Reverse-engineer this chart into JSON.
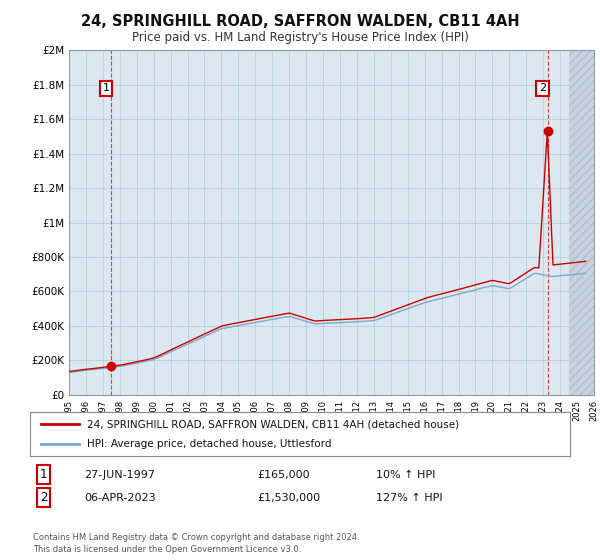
{
  "title": "24, SPRINGHILL ROAD, SAFFRON WALDEN, CB11 4AH",
  "subtitle": "Price paid vs. HM Land Registry's House Price Index (HPI)",
  "transaction1": {
    "date_label": "27-JUN-1997",
    "price": 165000,
    "year": 1997.49,
    "label": "1"
  },
  "transaction2": {
    "date_label": "06-APR-2023",
    "price": 1530000,
    "year": 2023.27,
    "label": "2"
  },
  "legend_line1": "24, SPRINGHILL ROAD, SAFFRON WALDEN, CB11 4AH (detached house)",
  "legend_line2": "HPI: Average price, detached house, Uttlesford",
  "copyright": "Contains HM Land Registry data © Crown copyright and database right 2024.\nThis data is licensed under the Open Government Licence v3.0.",
  "xmin": 1995,
  "xmax": 2026,
  "ymin": 0,
  "ymax": 2000000,
  "red_color": "#cc0000",
  "blue_color": "#7aaacc",
  "plot_bg": "#dce8f0",
  "fig_bg": "#ffffff",
  "grid_color": "#b0c8d8",
  "hatch_color": "#c0d0dc"
}
